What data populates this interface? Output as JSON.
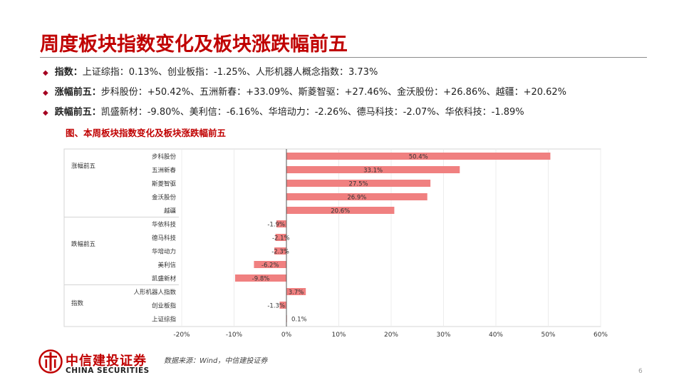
{
  "title": "周度板块指数变化及板块涨跌幅前五",
  "bullets": [
    {
      "label": "指数：",
      "text": "上证综指：0.13%、创业板指：-1.25%、人形机器人概念指数：3.73%"
    },
    {
      "label": "涨幅前五：",
      "text": "步科股份：+50.42%、五洲新春：+33.09%、斯菱智驱：+27.46%、金沃股份：+26.86%、越疆：+20.62%"
    },
    {
      "label": "跌幅前五：",
      "text": "凯盛新材：-9.80%、美利信：-6.16%、华培动力：-2.26%、德马科技：-2.07%、华依科技：-1.89%"
    }
  ],
  "figure_title": "图、本周板块指数变化及板块涨跌幅前五",
  "source": "数据来源：Wind，中信建投证券",
  "logo": {
    "cn": "中信建投证券",
    "en": "CHINA SECURITIES"
  },
  "page_number": "6",
  "colors": {
    "accent": "#c00000",
    "bar": "#f08080"
  },
  "chart_data": {
    "type": "bar",
    "orientation": "horizontal",
    "groups": [
      {
        "name": "涨幅前五",
        "items": [
          {
            "label": "步科股份",
            "value": 50.4,
            "text": "50.4%"
          },
          {
            "label": "五洲新春",
            "value": 33.1,
            "text": "33.1%"
          },
          {
            "label": "斯菱智驱",
            "value": 27.5,
            "text": "27.5%"
          },
          {
            "label": "金沃股份",
            "value": 26.9,
            "text": "26.9%"
          },
          {
            "label": "越疆",
            "value": 20.6,
            "text": "20.6%"
          }
        ]
      },
      {
        "name": "跌幅前五",
        "items": [
          {
            "label": "华依科技",
            "value": -1.9,
            "text": "-1.9%"
          },
          {
            "label": "德马科技",
            "value": -2.1,
            "text": "-2.1%"
          },
          {
            "label": "华培动力",
            "value": -2.3,
            "text": "-2.3%"
          },
          {
            "label": "美利信",
            "value": -6.2,
            "text": "-6.2%"
          },
          {
            "label": "凯盛新材",
            "value": -9.8,
            "text": "-9.8%"
          }
        ]
      },
      {
        "name": "指数",
        "items": [
          {
            "label": "人形机器人指数",
            "value": 3.7,
            "text": "3.7%"
          },
          {
            "label": "创业板指",
            "value": -1.3,
            "text": "-1.3%"
          },
          {
            "label": "上证综指",
            "value": 0.1,
            "text": "0.1%"
          }
        ]
      }
    ],
    "xlim": [
      -20,
      60
    ],
    "xticks": [
      "-20%",
      "-10%",
      "0%",
      "10%",
      "20%",
      "30%",
      "40%",
      "50%",
      "60%"
    ],
    "grid": true,
    "legend": "none"
  }
}
